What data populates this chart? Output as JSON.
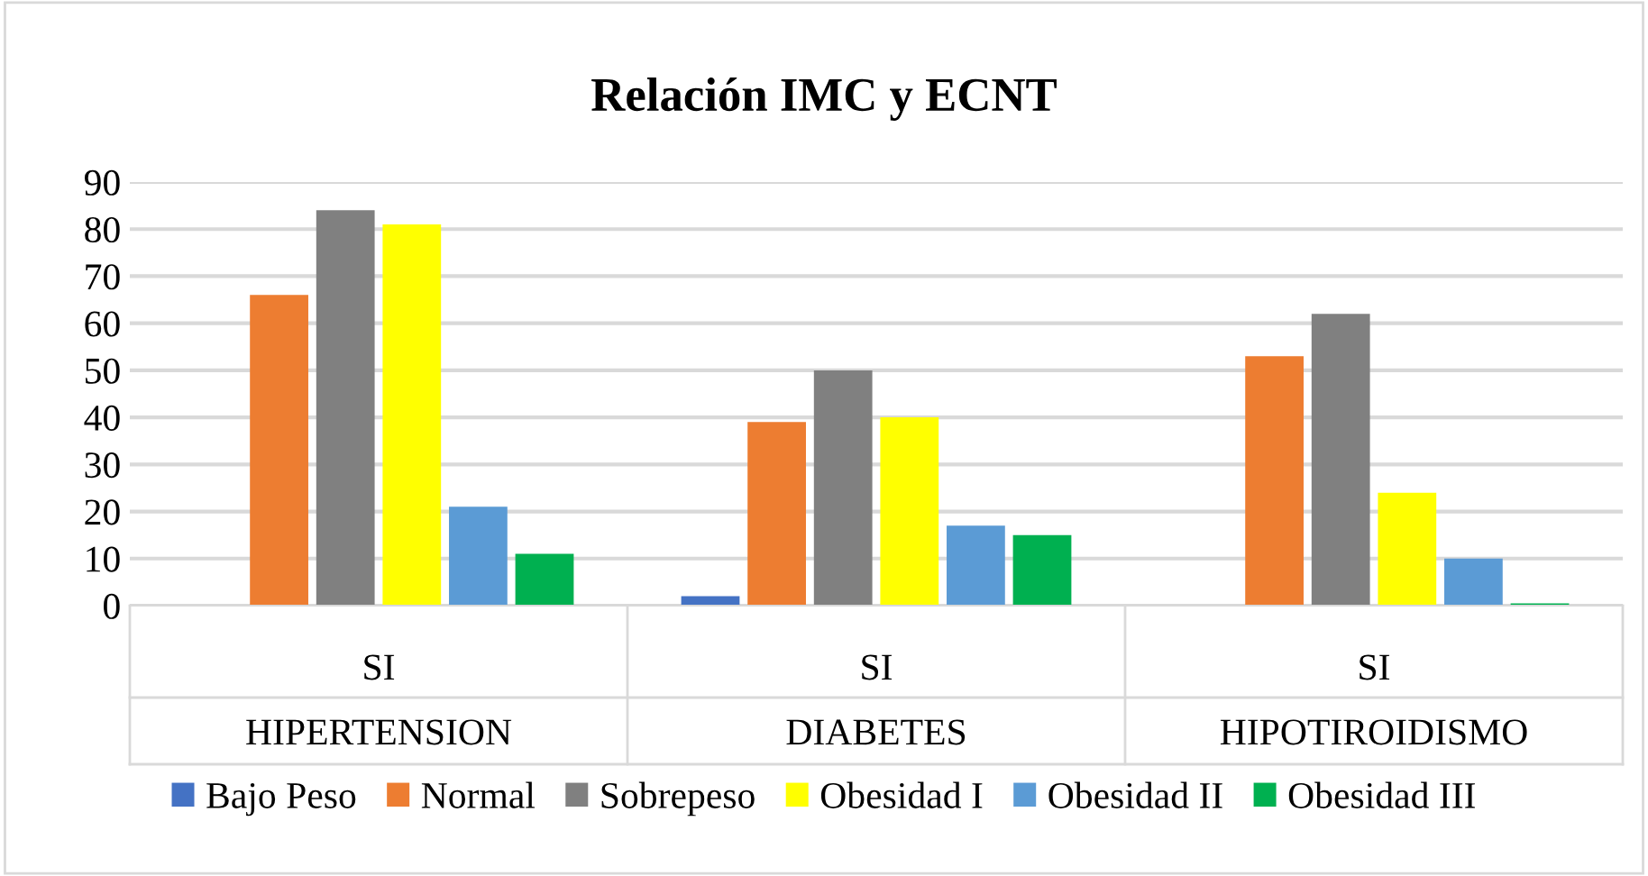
{
  "chart_data": {
    "type": "bar",
    "title": "Relación IMC y ECNT",
    "categories": [
      "SI",
      "SI",
      "SI"
    ],
    "annotations": [
      "HIPERTENSION",
      "DIABETES",
      "HIPOTIROIDISMO"
    ],
    "series": [
      {
        "name": "Bajo Peso",
        "color": "#4472c4",
        "values": [
          0,
          2,
          0
        ]
      },
      {
        "name": "Normal",
        "color": "#ed7d31",
        "values": [
          66,
          39,
          53
        ]
      },
      {
        "name": "Sobrepeso",
        "color": "#808080",
        "values": [
          84,
          50,
          62
        ]
      },
      {
        "name": "Obesidad I",
        "color": "#ffff00",
        "values": [
          81,
          40,
          24
        ]
      },
      {
        "name": "Obesidad II",
        "color": "#5b9bd5",
        "values": [
          21,
          17,
          10
        ]
      },
      {
        "name": "Obesidad III",
        "color": "#00b050",
        "values": [
          11,
          15,
          0.5
        ]
      }
    ],
    "ylim": [
      0,
      90
    ],
    "yticks": [
      0,
      10,
      20,
      30,
      40,
      50,
      60,
      70,
      80,
      90
    ],
    "grid": "y",
    "legend": "bottom"
  }
}
